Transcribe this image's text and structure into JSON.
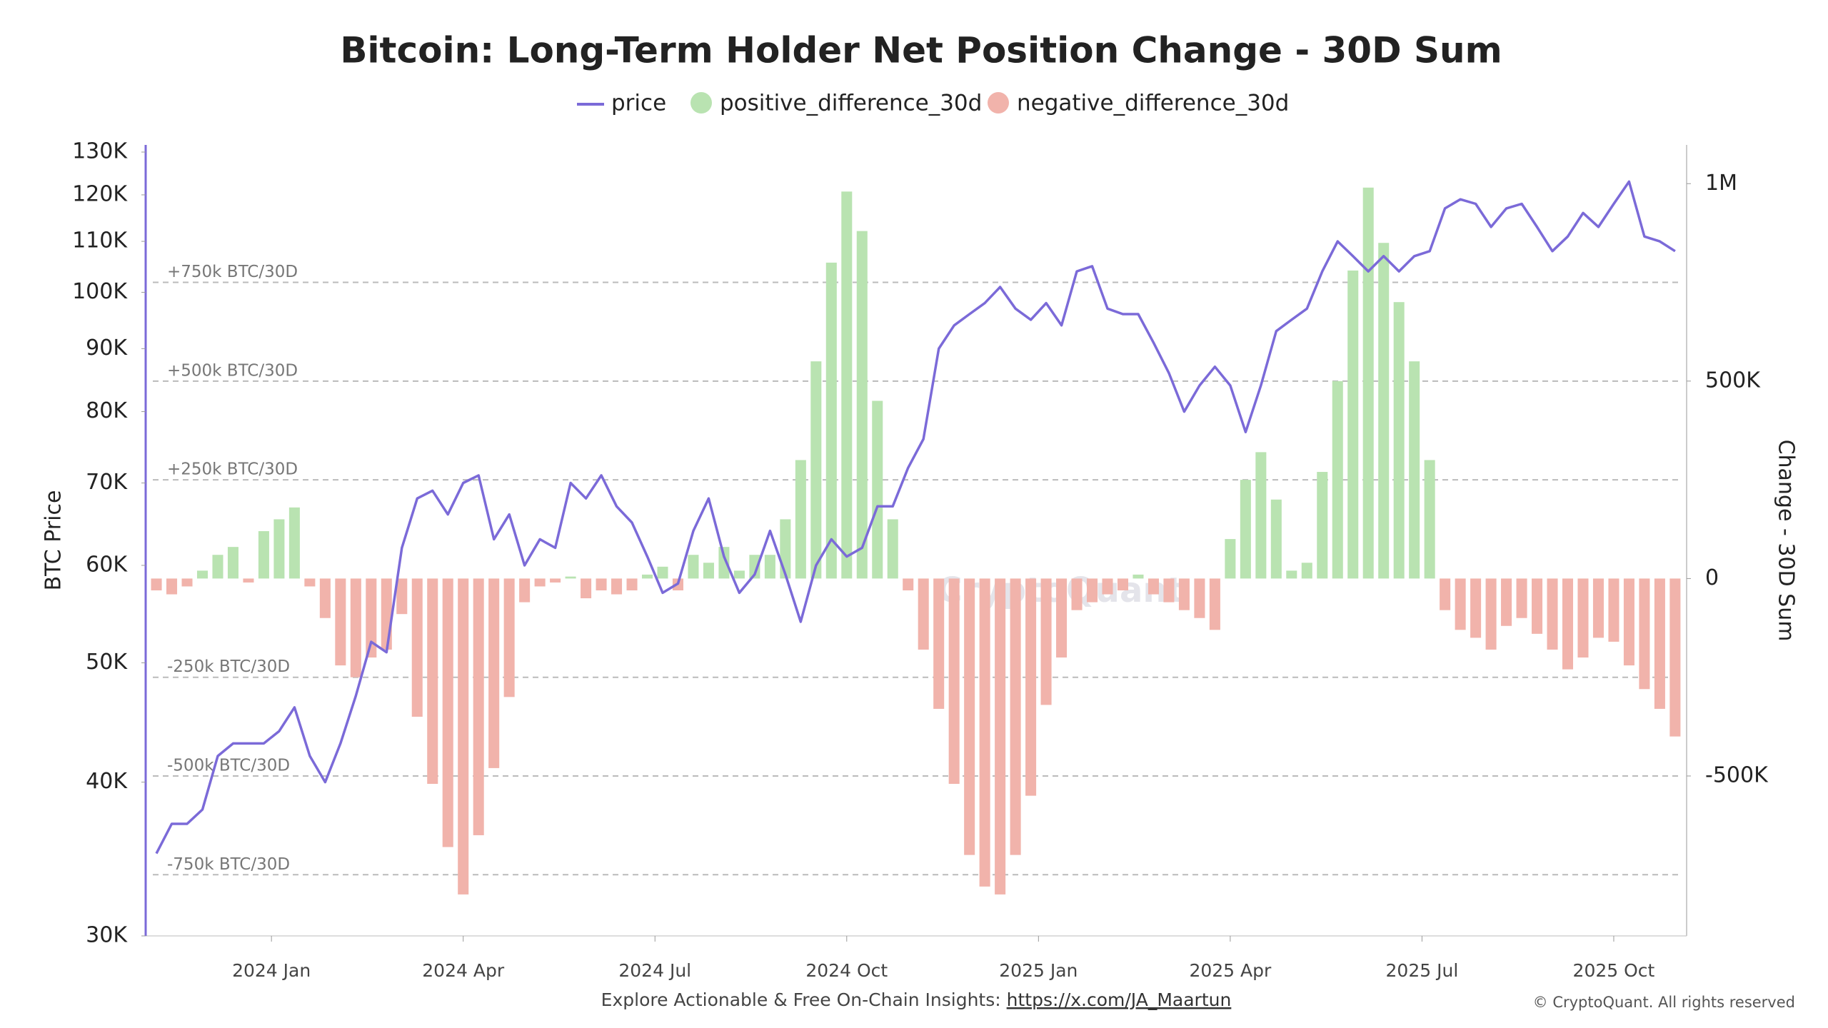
{
  "chart_data": {
    "type": "combo",
    "title": "Bitcoin: Long-Term Holder Net Position Change - 30D Sum",
    "y_label": "BTC Price",
    "y2_label": "Change - 30D Sum",
    "watermark": "CryptoQuant",
    "log_scale_y": true,
    "x": [
      2023.85,
      2023.87,
      2023.89,
      2023.91,
      2023.93,
      2023.95,
      2023.97,
      2023.99,
      2024.01,
      2024.03,
      2024.05,
      2024.07,
      2024.09,
      2024.11,
      2024.13,
      2024.15,
      2024.17,
      2024.19,
      2024.21,
      2024.23,
      2024.25,
      2024.27,
      2024.29,
      2024.31,
      2024.33,
      2024.35,
      2024.37,
      2024.39,
      2024.41,
      2024.43,
      2024.45,
      2024.47,
      2024.49,
      2024.51,
      2024.53,
      2024.55,
      2024.57,
      2024.59,
      2024.61,
      2024.63,
      2024.65,
      2024.67,
      2024.69,
      2024.71,
      2024.73,
      2024.75,
      2024.77,
      2024.79,
      2024.81,
      2024.83,
      2024.85,
      2024.87,
      2024.89,
      2024.91,
      2024.93,
      2024.95,
      2024.97,
      2024.99,
      2025.01,
      2025.03,
      2025.05,
      2025.07,
      2025.09,
      2025.11,
      2025.13,
      2025.15,
      2025.17,
      2025.19,
      2025.21,
      2025.23,
      2025.25,
      2025.27,
      2025.29,
      2025.31,
      2025.33,
      2025.35,
      2025.37,
      2025.39,
      2025.41,
      2025.43,
      2025.45,
      2025.47,
      2025.49,
      2025.51,
      2025.53,
      2025.55,
      2025.57,
      2025.59,
      2025.61,
      2025.63,
      2025.65,
      2025.67,
      2025.69,
      2025.71,
      2025.73,
      2025.75,
      2025.77,
      2025.79,
      2025.81,
      2025.83
    ],
    "xlim": [
      2023.836,
      2025.845
    ],
    "xticks": [
      {
        "value": 2024.0,
        "label": "2024 Jan"
      },
      {
        "value": 2024.25,
        "label": "2024 Apr"
      },
      {
        "value": 2024.5,
        "label": "2024 Jul"
      },
      {
        "value": 2024.75,
        "label": "2024 Oct"
      },
      {
        "value": 2025.0,
        "label": "2025 Jan"
      },
      {
        "value": 2025.25,
        "label": "2025 Apr"
      },
      {
        "value": 2025.5,
        "label": "2025 Jul"
      },
      {
        "value": 2025.75,
        "label": "2025 Oct"
      }
    ],
    "ylim": [
      30000,
      130000
    ],
    "yticks": [
      {
        "value": 30000,
        "label": "30K"
      },
      {
        "value": 40000,
        "label": "40K"
      },
      {
        "value": 50000,
        "label": "50K"
      },
      {
        "value": 60000,
        "label": "60K"
      },
      {
        "value": 70000,
        "label": "70K"
      },
      {
        "value": 80000,
        "label": "80K"
      },
      {
        "value": 90000,
        "label": "90K"
      },
      {
        "value": 100000,
        "label": "100K"
      },
      {
        "value": 110000,
        "label": "110K"
      },
      {
        "value": 120000,
        "label": "120K"
      },
      {
        "value": 130000,
        "label": "130K"
      }
    ],
    "y2lim": [
      -905000,
      1080000
    ],
    "y2ticks": [
      {
        "value": -500000,
        "label": "-500K"
      },
      0,
      {
        "value": 500000,
        "label": "500K"
      },
      {
        "value": 1000000,
        "label": "1M"
      }
    ],
    "reference_lines": [
      {
        "value": 750000,
        "label": "+750k BTC/30D"
      },
      {
        "value": 500000,
        "label": "+500k BTC/30D"
      },
      {
        "value": 250000,
        "label": "+250k BTC/30D"
      },
      {
        "value": -250000,
        "label": "-250k BTC/30D"
      },
      {
        "value": -500000,
        "label": "-500k BTC/30D"
      },
      {
        "value": -750000,
        "label": "-750k BTC/30D"
      }
    ],
    "series": [
      {
        "name": "price",
        "type": "line",
        "axis": "y",
        "color": "#7b6ad8",
        "values": [
          35000,
          37000,
          37000,
          38000,
          42000,
          43000,
          43000,
          43000,
          44000,
          46000,
          42000,
          40000,
          43000,
          47000,
          52000,
          51000,
          62000,
          68000,
          69000,
          66000,
          70000,
          71000,
          63000,
          66000,
          60000,
          63000,
          62000,
          70000,
          68000,
          71000,
          67000,
          65000,
          61000,
          57000,
          58000,
          64000,
          68000,
          61000,
          57000,
          59000,
          64000,
          59000,
          54000,
          60000,
          63000,
          61000,
          62000,
          67000,
          67000,
          72000,
          76000,
          90000,
          94000,
          96000,
          98000,
          101000,
          97000,
          95000,
          98000,
          94000,
          104000,
          105000,
          97000,
          96000,
          96000,
          91000,
          86000,
          80000,
          84000,
          87000,
          84000,
          77000,
          84000,
          93000,
          95000,
          97000,
          104000,
          110000,
          107000,
          104000,
          107000,
          104000,
          107000,
          108000,
          117000,
          119000,
          118000,
          113000,
          117000,
          118000,
          113000,
          108000,
          111000,
          116000,
          113000,
          118000,
          123000,
          111000,
          110000,
          108000
        ]
      },
      {
        "name": "positive_difference_30d",
        "type": "bar",
        "axis": "y2",
        "color": "#b9e3b1",
        "values": [
          null,
          null,
          null,
          20000,
          60000,
          80000,
          null,
          120000,
          150000,
          180000,
          null,
          null,
          null,
          null,
          null,
          null,
          null,
          null,
          null,
          null,
          null,
          null,
          null,
          null,
          null,
          null,
          null,
          5000,
          null,
          null,
          null,
          null,
          10000,
          30000,
          null,
          60000,
          40000,
          80000,
          20000,
          60000,
          60000,
          150000,
          300000,
          550000,
          800000,
          980000,
          880000,
          450000,
          150000,
          null,
          null,
          null,
          null,
          null,
          null,
          null,
          null,
          null,
          null,
          null,
          null,
          null,
          null,
          null,
          10000,
          null,
          null,
          null,
          null,
          null,
          100000,
          250000,
          320000,
          200000,
          20000,
          40000,
          270000,
          500000,
          780000,
          990000,
          850000,
          700000,
          550000,
          300000,
          null,
          null,
          null,
          null,
          null,
          null,
          null,
          null,
          null,
          null,
          null,
          null,
          null,
          null,
          null,
          null
        ]
      },
      {
        "name": "negative_difference_30d",
        "type": "bar",
        "axis": "y2",
        "color": "#f1b3ab",
        "values": [
          -30000,
          -40000,
          -20000,
          null,
          null,
          null,
          -10000,
          null,
          null,
          null,
          -20000,
          -100000,
          -220000,
          -250000,
          -200000,
          -180000,
          -90000,
          -350000,
          -520000,
          -680000,
          -800000,
          -650000,
          -480000,
          -300000,
          -60000,
          -20000,
          -10000,
          null,
          -50000,
          -30000,
          -40000,
          -30000,
          null,
          null,
          -30000,
          null,
          null,
          null,
          null,
          null,
          null,
          null,
          null,
          null,
          null,
          null,
          null,
          null,
          null,
          -30000,
          -180000,
          -330000,
          -520000,
          -700000,
          -780000,
          -800000,
          -700000,
          -550000,
          -320000,
          -200000,
          -80000,
          -60000,
          -40000,
          -30000,
          null,
          -40000,
          -60000,
          -80000,
          -100000,
          -130000,
          null,
          null,
          null,
          null,
          null,
          null,
          null,
          null,
          null,
          null,
          null,
          null,
          null,
          null,
          -80000,
          -130000,
          -150000,
          -180000,
          -120000,
          -100000,
          -140000,
          -180000,
          -230000,
          -200000,
          -150000,
          -160000,
          -220000,
          -280000,
          -330000,
          -400000
        ]
      }
    ]
  },
  "footer": {
    "text": "Explore Actionable & Free On-Chain Insights: ",
    "link": "https://x.com/JA_Maartun",
    "copyright": "© CryptoQuant. All rights reserved"
  }
}
